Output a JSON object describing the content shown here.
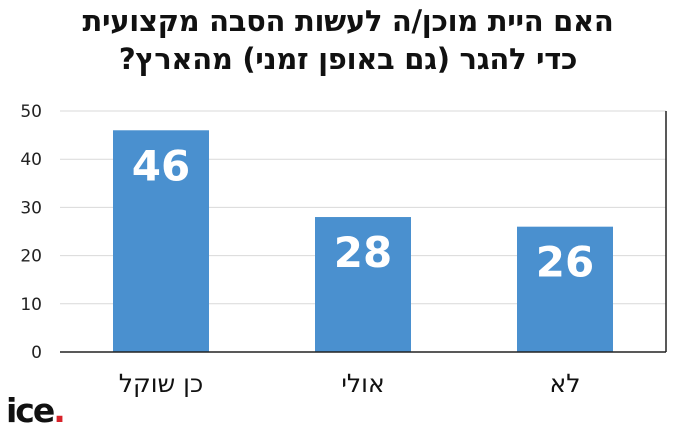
{
  "title_lines": [
    "האם היית מוכן/ה לעשות הסבה מקצועית",
    "כדי להגר (גם באופן זמני) מהארץ?"
  ],
  "logo": {
    "text": "ice",
    "dot": "."
  },
  "colors": {
    "bar": "#4a90cf",
    "label": "#ffffff",
    "grid": "#d9d9d9",
    "axis": "#222222",
    "logo_dot": "#d8232a"
  },
  "chart_data": {
    "type": "bar",
    "categories": [
      "כן שוקל",
      "אולי",
      "לא"
    ],
    "values": [
      46,
      28,
      26
    ],
    "data_labels": [
      "46",
      "28",
      "26"
    ],
    "ylim": [
      0,
      50
    ],
    "yticks": [
      0,
      10,
      20,
      30,
      40,
      50
    ],
    "grid": true,
    "title": "האם היית מוכן/ה לעשות הסבה מקצועית כדי להגר (גם באופן זמני) מהארץ?",
    "xlabel": "",
    "ylabel": ""
  }
}
